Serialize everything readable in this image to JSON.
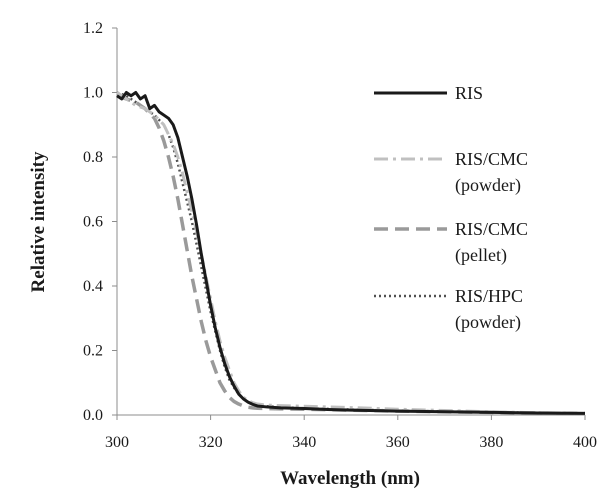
{
  "chart_data": {
    "type": "line",
    "title": "",
    "xlabel": "Wavelength (nm)",
    "ylabel": "Relative intensity",
    "xlim": [
      300,
      400
    ],
    "ylim": [
      0,
      1.2
    ],
    "xticks": [
      "300",
      "320",
      "340",
      "360",
      "380",
      "400"
    ],
    "yticks": [
      "0.0",
      "0.2",
      "0.4",
      "0.6",
      "0.8",
      "1.0",
      "1.2"
    ],
    "grid": false,
    "legend_position": "right",
    "series": [
      {
        "name": "RIS",
        "label_lines": [
          "RIS"
        ],
        "color": "#1a1a1a",
        "dash": "solid",
        "x": [
          300,
          301,
          302,
          303,
          304,
          305,
          306,
          307,
          308,
          309,
          310,
          311,
          312,
          313,
          314,
          315,
          316,
          317,
          318,
          319,
          320,
          321,
          322,
          323,
          324,
          325,
          326,
          327,
          328,
          329,
          330,
          332,
          335,
          340,
          345,
          350,
          360,
          370,
          380,
          390,
          400
        ],
        "y": [
          0.99,
          0.98,
          1.0,
          0.99,
          1.0,
          0.98,
          0.99,
          0.95,
          0.96,
          0.94,
          0.93,
          0.92,
          0.9,
          0.86,
          0.8,
          0.74,
          0.67,
          0.59,
          0.5,
          0.42,
          0.34,
          0.27,
          0.21,
          0.16,
          0.12,
          0.09,
          0.065,
          0.05,
          0.04,
          0.033,
          0.028,
          0.025,
          0.022,
          0.02,
          0.017,
          0.015,
          0.012,
          0.01,
          0.008,
          0.006,
          0.005
        ]
      },
      {
        "name": "RIS/CMC (powder)",
        "label_lines": [
          "RIS/CMC",
          "(powder)"
        ],
        "color": "#c0c0c0",
        "dash": "dashdot",
        "x": [
          300,
          302,
          304,
          306,
          308,
          310,
          311,
          312,
          313,
          314,
          315,
          316,
          317,
          318,
          319,
          320,
          321,
          322,
          323,
          324,
          325,
          326,
          327,
          328,
          329,
          330,
          332,
          335,
          340,
          345,
          350,
          360,
          370,
          380,
          390,
          400
        ],
        "y": [
          1.0,
          0.98,
          0.96,
          0.95,
          0.93,
          0.9,
          0.87,
          0.84,
          0.8,
          0.75,
          0.69,
          0.63,
          0.57,
          0.5,
          0.43,
          0.36,
          0.29,
          0.23,
          0.18,
          0.14,
          0.1,
          0.075,
          0.055,
          0.045,
          0.038,
          0.034,
          0.031,
          0.029,
          0.027,
          0.025,
          0.023,
          0.018,
          0.014,
          0.01,
          0.007,
          0.005
        ]
      },
      {
        "name": "RIS/CMC (pellet)",
        "label_lines": [
          "RIS/CMC",
          "(pellet)"
        ],
        "color": "#9a9a9a",
        "dash": "dashed",
        "x": [
          300,
          302,
          304,
          306,
          308,
          309,
          310,
          311,
          312,
          313,
          314,
          315,
          316,
          317,
          318,
          319,
          320,
          321,
          322,
          323,
          324,
          325,
          326,
          327,
          328,
          329,
          330,
          332,
          335,
          340,
          350,
          360,
          370,
          380,
          390,
          400
        ],
        "y": [
          0.99,
          0.98,
          0.97,
          0.95,
          0.92,
          0.89,
          0.85,
          0.8,
          0.74,
          0.67,
          0.59,
          0.51,
          0.43,
          0.36,
          0.29,
          0.23,
          0.18,
          0.14,
          0.1,
          0.075,
          0.055,
          0.042,
          0.034,
          0.028,
          0.024,
          0.022,
          0.021,
          0.02,
          0.019,
          0.018,
          0.015,
          0.012,
          0.01,
          0.008,
          0.006,
          0.005
        ]
      },
      {
        "name": "RIS/HPC (powder)",
        "label_lines": [
          "RIS/HPC",
          "(powder)"
        ],
        "color": "#505050",
        "dash": "dotted",
        "x": [
          300,
          302,
          304,
          306,
          308,
          310,
          311,
          312,
          313,
          314,
          315,
          316,
          317,
          318,
          319,
          320,
          321,
          322,
          323,
          324,
          325,
          326,
          327,
          328,
          329,
          330,
          332,
          335,
          340,
          345,
          350,
          360,
          370,
          380,
          390,
          400
        ],
        "y": [
          1.0,
          0.99,
          0.97,
          0.95,
          0.93,
          0.9,
          0.87,
          0.83,
          0.78,
          0.72,
          0.66,
          0.6,
          0.53,
          0.46,
          0.39,
          0.32,
          0.26,
          0.2,
          0.15,
          0.11,
          0.085,
          0.065,
          0.05,
          0.04,
          0.034,
          0.03,
          0.027,
          0.024,
          0.021,
          0.019,
          0.017,
          0.014,
          0.011,
          0.009,
          0.007,
          0.005
        ]
      }
    ]
  }
}
